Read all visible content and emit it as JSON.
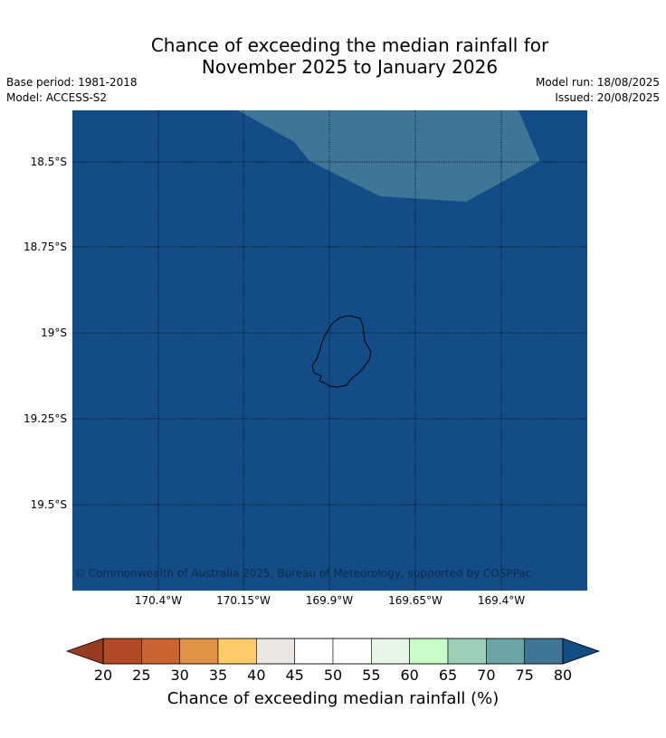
{
  "title": {
    "line1": "Chance of exceeding the median rainfall for",
    "line2": "November 2025 to January 2026"
  },
  "meta": {
    "base_period": "Base period: 1981-2018",
    "model": "Model: ACCESS-S2",
    "model_run": "Model run: 18/08/2025",
    "issued": "Issued: 20/08/2025"
  },
  "map": {
    "copyright": "© Commonwealth of Australia 2025, Bureau of Meteorology, supported by COSPPac",
    "background_category": "80+",
    "patch_category": "75-80",
    "lat_labels": [
      "18.5°S",
      "18.75°S",
      "19°S",
      "19.25°S",
      "19.5°S"
    ],
    "lon_labels": [
      "170.4°W",
      "170.15°W",
      "169.9°W",
      "169.65°W",
      "169.4°W"
    ]
  },
  "colorbar": {
    "label": "Chance of exceeding median rainfall (%)",
    "ticks": [
      "20",
      "25",
      "30",
      "35",
      "40",
      "45",
      "50",
      "55",
      "60",
      "65",
      "70",
      "75",
      "80"
    ],
    "colors": [
      "#b34a27",
      "#cc6432",
      "#e09346",
      "#fdcc68",
      "#ebe6e2",
      "#ffffff",
      "#ffffff",
      "#e6f5e6",
      "#c9fcc9",
      "#9ccfb8",
      "#6ca3a4",
      "#3f7697"
    ],
    "under_color": "#9a3a22",
    "over_color": "#134c86"
  }
}
